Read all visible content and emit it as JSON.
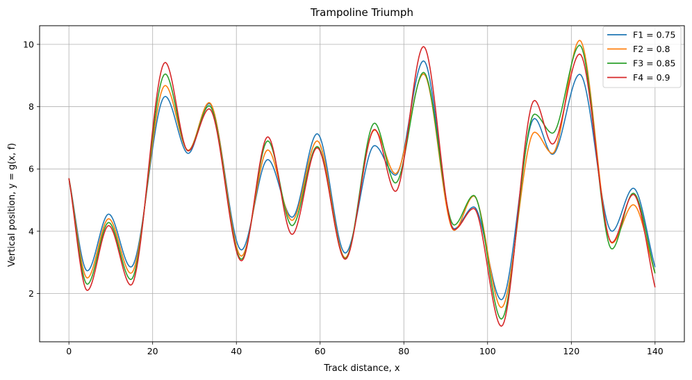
{
  "chart_data": {
    "type": "line",
    "title": "Trampoline Triumph",
    "xlabel": "Track distance, x",
    "ylabel": "Vertical position, y = g(x, f)",
    "xlim": [
      -7,
      147
    ],
    "ylim": [
      0.45,
      10.6
    ],
    "xticks": [
      0,
      20,
      40,
      60,
      80,
      100,
      120,
      140
    ],
    "yticks": [
      2,
      4,
      6,
      8,
      10
    ],
    "grid": true,
    "legend_position": "top-right",
    "series": [
      {
        "name": "F1 = 0.75",
        "color": "#1f77b4",
        "points": [
          [
            0,
            5.7
          ],
          [
            4.4,
            2.73
          ],
          [
            9.5,
            4.55
          ],
          [
            14.8,
            2.85
          ],
          [
            23,
            8.33
          ],
          [
            28.5,
            6.5
          ],
          [
            33.5,
            8.1
          ],
          [
            41.2,
            3.4
          ],
          [
            47.5,
            6.3
          ],
          [
            53.3,
            4.45
          ],
          [
            59.3,
            7.13
          ],
          [
            66,
            3.3
          ],
          [
            73,
            6.75
          ],
          [
            78,
            5.8
          ],
          [
            84.7,
            9.47
          ],
          [
            92,
            4.08
          ],
          [
            96.7,
            4.78
          ],
          [
            103.3,
            1.8
          ],
          [
            111.2,
            7.62
          ],
          [
            115.5,
            6.47
          ],
          [
            122,
            9.04
          ],
          [
            129.7,
            4.0
          ],
          [
            134.8,
            5.38
          ],
          [
            140,
            2.85
          ]
        ]
      },
      {
        "name": "F2 = 0.8",
        "color": "#ff7f0e",
        "points": [
          [
            0,
            5.7
          ],
          [
            4.4,
            2.5
          ],
          [
            9.5,
            4.4
          ],
          [
            14.8,
            2.65
          ],
          [
            23,
            8.68
          ],
          [
            28.5,
            6.6
          ],
          [
            33.5,
            8.13
          ],
          [
            41.2,
            3.2
          ],
          [
            47.5,
            6.61
          ],
          [
            53.3,
            4.35
          ],
          [
            59.3,
            6.9
          ],
          [
            66,
            3.15
          ],
          [
            73,
            7.25
          ],
          [
            78,
            5.85
          ],
          [
            84.7,
            9.05
          ],
          [
            92,
            4.03
          ],
          [
            96.7,
            5.13
          ],
          [
            103.3,
            1.55
          ],
          [
            111.2,
            7.18
          ],
          [
            115.5,
            6.5
          ],
          [
            122,
            10.13
          ],
          [
            129.7,
            3.62
          ],
          [
            134.8,
            4.85
          ],
          [
            140,
            2.65
          ]
        ]
      },
      {
        "name": "F3 = 0.85",
        "color": "#2ca02c",
        "points": [
          [
            0,
            5.7
          ],
          [
            4.4,
            2.3
          ],
          [
            9.5,
            4.28
          ],
          [
            14.8,
            2.45
          ],
          [
            23,
            9.05
          ],
          [
            28.5,
            6.58
          ],
          [
            33.5,
            8.03
          ],
          [
            41.2,
            3.1
          ],
          [
            47.5,
            6.9
          ],
          [
            53.3,
            4.18
          ],
          [
            59.3,
            6.72
          ],
          [
            66,
            3.12
          ],
          [
            73,
            7.47
          ],
          [
            78,
            5.55
          ],
          [
            84.7,
            9.1
          ],
          [
            92,
            4.2
          ],
          [
            96.7,
            5.15
          ],
          [
            103.3,
            1.18
          ],
          [
            111.2,
            7.76
          ],
          [
            115.5,
            7.15
          ],
          [
            122,
            9.97
          ],
          [
            129.7,
            3.43
          ],
          [
            134.8,
            5.22
          ],
          [
            140,
            2.65
          ]
        ]
      },
      {
        "name": "F4 = 0.9",
        "color": "#d62728",
        "points": [
          [
            0,
            5.7
          ],
          [
            4.4,
            2.1
          ],
          [
            9.5,
            4.18
          ],
          [
            14.8,
            2.27
          ],
          [
            23,
            9.42
          ],
          [
            28.5,
            6.58
          ],
          [
            33.5,
            7.93
          ],
          [
            41.2,
            3.05
          ],
          [
            47.5,
            7.03
          ],
          [
            53.3,
            3.9
          ],
          [
            59.3,
            6.68
          ],
          [
            66,
            3.1
          ],
          [
            73,
            7.27
          ],
          [
            78,
            5.28
          ],
          [
            84.7,
            9.93
          ],
          [
            92,
            4.05
          ],
          [
            96.7,
            4.73
          ],
          [
            103.3,
            0.95
          ],
          [
            111.2,
            8.2
          ],
          [
            115.5,
            6.8
          ],
          [
            122,
            9.69
          ],
          [
            129.7,
            3.64
          ],
          [
            134.8,
            5.18
          ],
          [
            140,
            2.2
          ]
        ]
      }
    ]
  }
}
